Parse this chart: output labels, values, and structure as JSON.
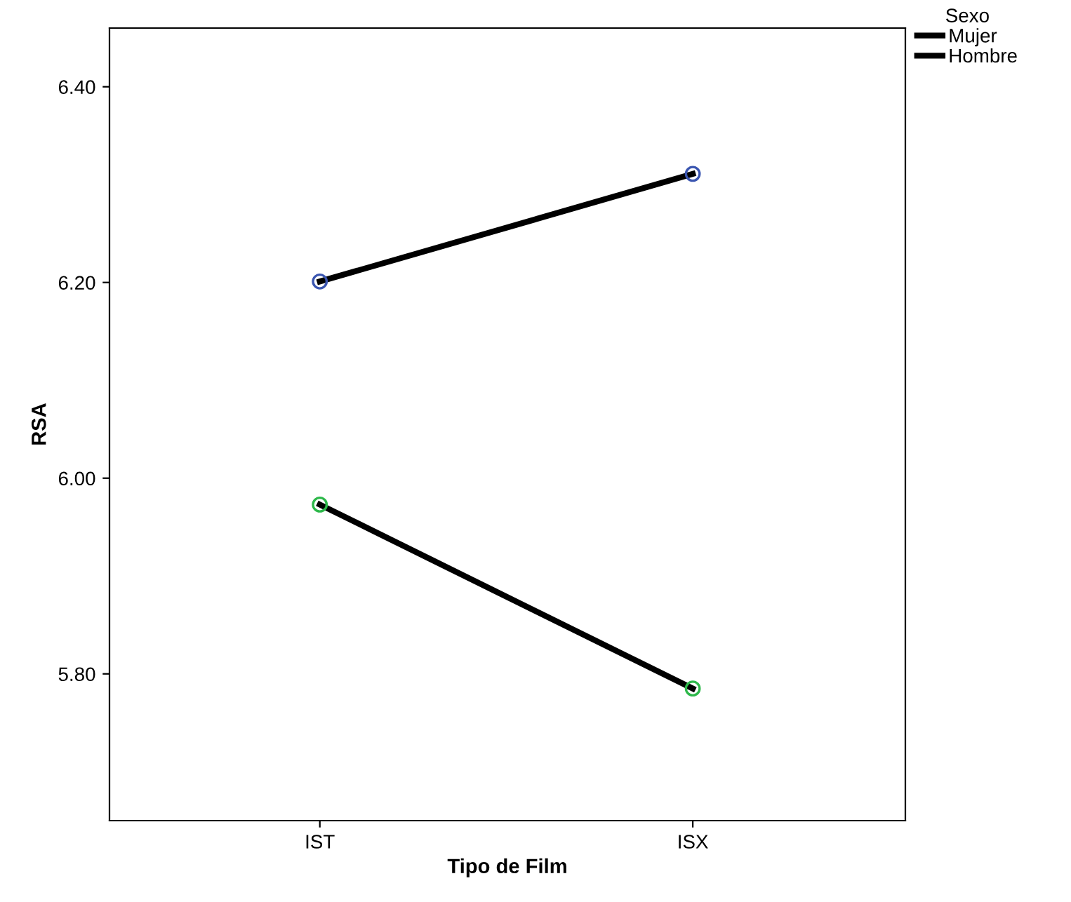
{
  "chart_data": {
    "type": "line",
    "xlabel": "Tipo de Film",
    "ylabel": "RSA",
    "legend_title": "Sexo",
    "categories": [
      "IST",
      "ISX"
    ],
    "series": [
      {
        "name": "Mujer",
        "color": "#000000",
        "colors": [
          "#3a55b0",
          "#3a55b0"
        ],
        "values": [
          6.201,
          6.311
        ]
      },
      {
        "name": "Hombre",
        "color": "#000000",
        "colors": [
          "#2db84a",
          "#2db84a"
        ],
        "values": [
          5.973,
          5.785
        ]
      }
    ],
    "ylim": [
      5.65,
      6.46
    ],
    "yticks": [
      {
        "value": 5.8,
        "label": "5.80"
      },
      {
        "value": 6.0,
        "label": "6.00"
      },
      {
        "value": 6.2,
        "label": "6.20"
      },
      {
        "value": 6.4,
        "label": "6.40"
      }
    ],
    "marker": "circle",
    "line_style": "solid",
    "grid": false,
    "legend": "top right"
  }
}
